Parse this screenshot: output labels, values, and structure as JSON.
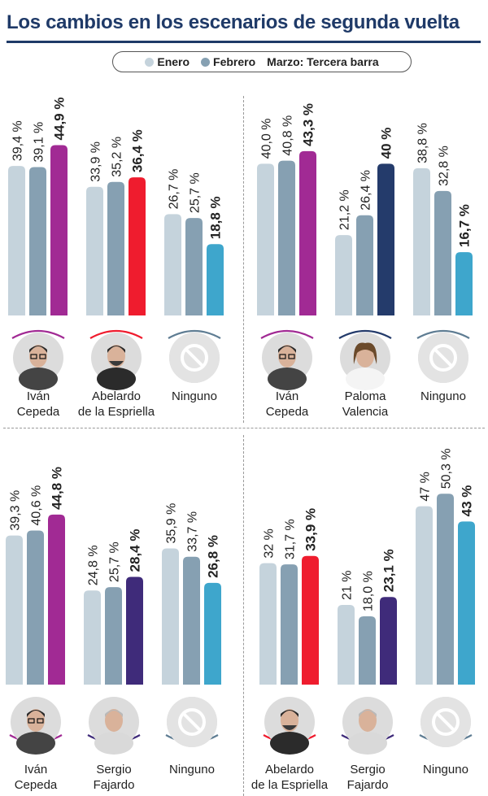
{
  "title": "Los cambios en los escenarios de segunda vuelta",
  "legend": [
    {
      "label": "Enero",
      "color": "#c5d3dc",
      "dot": true
    },
    {
      "label": "Febrero",
      "color": "#86a0b2",
      "dot": true
    },
    {
      "label": "Marzo: Tercera barra",
      "color": "",
      "dot": false
    }
  ],
  "colors": {
    "enero": "#c5d3dc",
    "febrero": "#86a0b2",
    "cepeda": "#a12a94",
    "abelardo": "#ef1c2e",
    "paloma": "#243b6b",
    "fajardo": "#3f2b7a",
    "ninguno": "#3ea6cc"
  },
  "chart_data": [
    {
      "type": "bar",
      "series": [
        "Enero",
        "Febrero",
        "Marzo"
      ],
      "groups": [
        {
          "label": [
            "Iván",
            "Cepeda"
          ],
          "values": [
            39.4,
            39.1,
            44.9
          ],
          "labels": [
            "39,4 %",
            "39,1 %",
            "44,9 %"
          ],
          "color_key": "cepeda",
          "avatar": "cepeda"
        },
        {
          "label": [
            "Abelardo",
            "de la Espriella"
          ],
          "values": [
            33.9,
            35.2,
            36.4
          ],
          "labels": [
            "33,9 %",
            "35,2 %",
            "36,4 %"
          ],
          "color_key": "abelardo",
          "avatar": "abelardo"
        },
        {
          "label": [
            "Ninguno"
          ],
          "values": [
            26.7,
            25.7,
            18.8
          ],
          "labels": [
            "26,7 %",
            "25,7 %",
            "18,8 %"
          ],
          "color_key": "ninguno",
          "avatar": "ninguno"
        }
      ]
    },
    {
      "type": "bar",
      "series": [
        "Enero",
        "Febrero",
        "Marzo"
      ],
      "groups": [
        {
          "label": [
            "Iván",
            "Cepeda"
          ],
          "values": [
            40.0,
            40.8,
            43.3
          ],
          "labels": [
            "40,0 %",
            "40,8 %",
            "43,3 %"
          ],
          "color_key": "cepeda",
          "avatar": "cepeda"
        },
        {
          "label": [
            "Paloma",
            "Valencia"
          ],
          "values": [
            21.2,
            26.4,
            40
          ],
          "labels": [
            "21,2 %",
            "26,4 %",
            "40 %"
          ],
          "color_key": "paloma",
          "avatar": "paloma"
        },
        {
          "label": [
            "Ninguno"
          ],
          "values": [
            38.8,
            32.8,
            16.7
          ],
          "labels": [
            "38,8 %",
            "32,8 %",
            "16,7 %"
          ],
          "color_key": "ninguno",
          "avatar": "ninguno"
        }
      ]
    },
    {
      "type": "bar",
      "series": [
        "Enero",
        "Febrero",
        "Marzo"
      ],
      "groups": [
        {
          "label": [
            "Iván",
            "Cepeda"
          ],
          "values": [
            39.3,
            40.6,
            44.8
          ],
          "labels": [
            "39,3 %",
            "40,6 %",
            "44,8 %"
          ],
          "color_key": "cepeda",
          "avatar": "cepeda"
        },
        {
          "label": [
            "Sergio",
            "Fajardo"
          ],
          "values": [
            24.8,
            25.7,
            28.4
          ],
          "labels": [
            "24,8 %",
            "25,7 %",
            "28,4 %"
          ],
          "color_key": "fajardo",
          "avatar": "fajardo"
        },
        {
          "label": [
            "Ninguno"
          ],
          "values": [
            35.9,
            33.7,
            26.8
          ],
          "labels": [
            "35,9 %",
            "33,7 %",
            "26,8 %"
          ],
          "color_key": "ninguno",
          "avatar": "ninguno"
        }
      ]
    },
    {
      "type": "bar",
      "series": [
        "Enero",
        "Febrero",
        "Marzo"
      ],
      "groups": [
        {
          "label": [
            "Abelardo",
            "de la Espriella"
          ],
          "values": [
            32,
            31.7,
            33.9
          ],
          "labels": [
            "32 %",
            "31,7 %",
            "33,9 %"
          ],
          "color_key": "abelardo",
          "avatar": "abelardo"
        },
        {
          "label": [
            "Sergio",
            "Fajardo"
          ],
          "values": [
            21,
            18.0,
            23.1
          ],
          "labels": [
            "21 %",
            "18,0 %",
            "23,1 %"
          ],
          "color_key": "fajardo",
          "avatar": "fajardo"
        },
        {
          "label": [
            "Ninguno"
          ],
          "values": [
            47,
            50.3,
            43
          ],
          "labels": [
            "47 %",
            "50,3 %",
            "43 %"
          ],
          "color_key": "ninguno",
          "avatar": "ninguno"
        }
      ]
    }
  ]
}
